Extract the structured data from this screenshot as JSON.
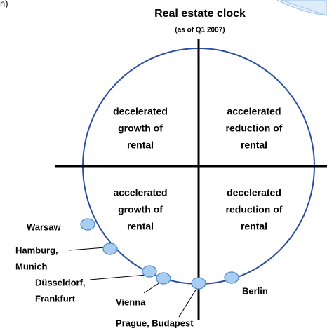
{
  "corner_text": "n)",
  "header": {
    "title": "Real estate clock",
    "subtitle": "(as of Q1 2007)"
  },
  "quadrants": [
    {
      "lines": [
        "decelerated",
        "growth of",
        "rental"
      ]
    },
    {
      "lines": [
        "accelerated",
        "reduction of",
        "rental"
      ]
    },
    {
      "lines": [
        "accelerated",
        "growth of",
        "rental"
      ]
    },
    {
      "lines": [
        "decelerated",
        "reduction of",
        "rental"
      ]
    }
  ],
  "cities": [
    {
      "lines": [
        "Warsaw"
      ]
    },
    {
      "lines": [
        "Hamburg,",
        "Munich"
      ]
    },
    {
      "lines": [
        "Düsseldorf,",
        "Frankfurt"
      ]
    },
    {
      "lines": [
        "Vienna"
      ]
    },
    {
      "lines": [
        "Prague, Budapest"
      ]
    },
    {
      "lines": [
        "Berlin"
      ]
    }
  ]
}
